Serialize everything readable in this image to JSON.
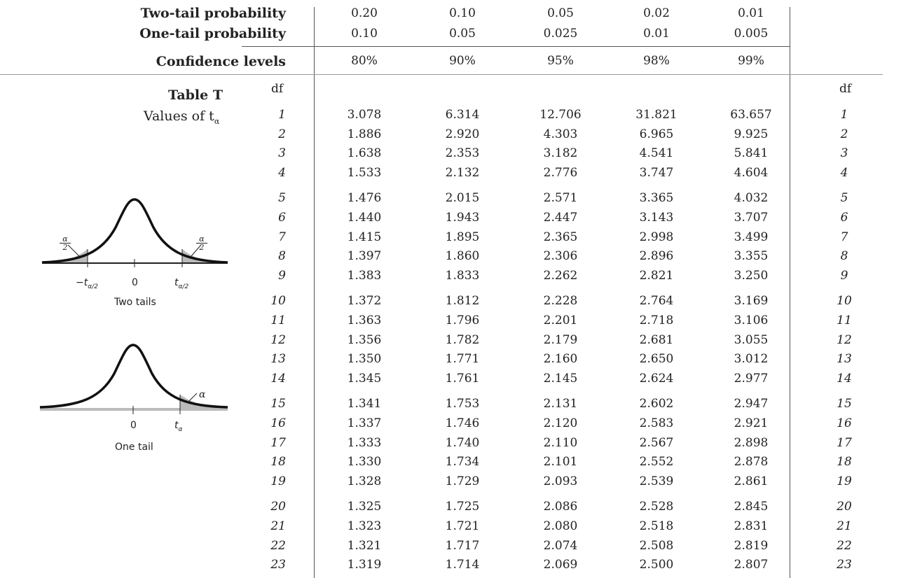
{
  "header": {
    "two_tail_label": "Two-tail probability",
    "one_tail_label": "One-tail probability",
    "confidence_label": "Confidence levels",
    "two_tail": [
      "0.20",
      "0.10",
      "0.05",
      "0.02",
      "0.01"
    ],
    "one_tail": [
      "0.10",
      "0.05",
      "0.025",
      "0.01",
      "0.005"
    ],
    "confidence": [
      "80%",
      "90%",
      "95%",
      "98%",
      "99%"
    ]
  },
  "table": {
    "title": "Table T",
    "subtitle": "Values of t",
    "subtitle_sub": "α",
    "df_label": "df",
    "rows": [
      {
        "df": "1",
        "v": [
          "3.078",
          "6.314",
          "12.706",
          "31.821",
          "63.657"
        ]
      },
      {
        "df": "2",
        "v": [
          "1.886",
          "2.920",
          "4.303",
          "6.965",
          "9.925"
        ]
      },
      {
        "df": "3",
        "v": [
          "1.638",
          "2.353",
          "3.182",
          "4.541",
          "5.841"
        ]
      },
      {
        "df": "4",
        "v": [
          "1.533",
          "2.132",
          "2.776",
          "3.747",
          "4.604"
        ]
      },
      {
        "df": "5",
        "v": [
          "1.476",
          "2.015",
          "2.571",
          "3.365",
          "4.032"
        ]
      },
      {
        "df": "6",
        "v": [
          "1.440",
          "1.943",
          "2.447",
          "3.143",
          "3.707"
        ]
      },
      {
        "df": "7",
        "v": [
          "1.415",
          "1.895",
          "2.365",
          "2.998",
          "3.499"
        ]
      },
      {
        "df": "8",
        "v": [
          "1.397",
          "1.860",
          "2.306",
          "2.896",
          "3.355"
        ]
      },
      {
        "df": "9",
        "v": [
          "1.383",
          "1.833",
          "2.262",
          "2.821",
          "3.250"
        ]
      },
      {
        "df": "10",
        "v": [
          "1.372",
          "1.812",
          "2.228",
          "2.764",
          "3.169"
        ]
      },
      {
        "df": "11",
        "v": [
          "1.363",
          "1.796",
          "2.201",
          "2.718",
          "3.106"
        ]
      },
      {
        "df": "12",
        "v": [
          "1.356",
          "1.782",
          "2.179",
          "2.681",
          "3.055"
        ]
      },
      {
        "df": "13",
        "v": [
          "1.350",
          "1.771",
          "2.160",
          "2.650",
          "3.012"
        ]
      },
      {
        "df": "14",
        "v": [
          "1.345",
          "1.761",
          "2.145",
          "2.624",
          "2.977"
        ]
      },
      {
        "df": "15",
        "v": [
          "1.341",
          "1.753",
          "2.131",
          "2.602",
          "2.947"
        ]
      },
      {
        "df": "16",
        "v": [
          "1.337",
          "1.746",
          "2.120",
          "2.583",
          "2.921"
        ]
      },
      {
        "df": "17",
        "v": [
          "1.333",
          "1.740",
          "2.110",
          "2.567",
          "2.898"
        ]
      },
      {
        "df": "18",
        "v": [
          "1.330",
          "1.734",
          "2.101",
          "2.552",
          "2.878"
        ]
      },
      {
        "df": "19",
        "v": [
          "1.328",
          "1.729",
          "2.093",
          "2.539",
          "2.861"
        ]
      },
      {
        "df": "20",
        "v": [
          "1.325",
          "1.725",
          "2.086",
          "2.528",
          "2.845"
        ]
      },
      {
        "df": "21",
        "v": [
          "1.323",
          "1.721",
          "2.080",
          "2.518",
          "2.831"
        ]
      },
      {
        "df": "22",
        "v": [
          "1.321",
          "1.717",
          "2.074",
          "2.508",
          "2.819"
        ]
      },
      {
        "df": "23",
        "v": [
          "1.319",
          "1.714",
          "2.069",
          "2.500",
          "2.807"
        ]
      }
    ]
  },
  "figures": {
    "two_tails": {
      "caption": "Two tails",
      "left_tick": "−t",
      "left_tick_sub": "α/2",
      "center_tick": "0",
      "right_tick": "t",
      "right_tick_sub": "α/2",
      "alpha_num": "α",
      "alpha_den": "2"
    },
    "one_tail": {
      "caption": "One tail",
      "center_tick": "0",
      "right_tick": "t",
      "right_tick_sub": "α",
      "alpha": "α"
    }
  }
}
